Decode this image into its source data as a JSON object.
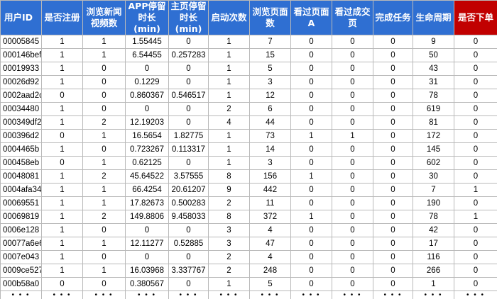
{
  "columns": [
    "用户ID",
    "是否注册",
    "浏览新闻视频数",
    "APP停留时长(min)",
    "主页停留时长(min)",
    "启动次数",
    "浏览页面数",
    "看过页面A",
    "看过成交页",
    "完成任务",
    "生命周期",
    "是否下单"
  ],
  "colors": {
    "header_bg": "#2f6fd2",
    "header_highlight_bg": "#c10000",
    "header_text": "#ffffff"
  },
  "rows": [
    [
      "00005845",
      "1",
      "1",
      "1.55445",
      "0",
      "1",
      "7",
      "0",
      "0",
      "0",
      "9",
      "0"
    ],
    [
      "000146bef",
      "1",
      "1",
      "6.54455",
      "0.257283",
      "1",
      "15",
      "0",
      "0",
      "0",
      "50",
      "0"
    ],
    [
      "00019933",
      "1",
      "0",
      "0",
      "0",
      "1",
      "5",
      "0",
      "0",
      "0",
      "43",
      "0"
    ],
    [
      "00026d92",
      "1",
      "0",
      "0.1229",
      "0",
      "1",
      "3",
      "0",
      "0",
      "0",
      "31",
      "0"
    ],
    [
      "0002aad2c",
      "0",
      "0",
      "0.860367",
      "0.546517",
      "1",
      "12",
      "0",
      "0",
      "0",
      "78",
      "0"
    ],
    [
      "00034480",
      "1",
      "0",
      "0",
      "0",
      "2",
      "6",
      "0",
      "0",
      "0",
      "619",
      "0"
    ],
    [
      "000349df2",
      "1",
      "2",
      "12.19203",
      "0",
      "4",
      "44",
      "0",
      "0",
      "0",
      "81",
      "0"
    ],
    [
      "000396d2",
      "0",
      "1",
      "16.5654",
      "1.82775",
      "1",
      "73",
      "1",
      "1",
      "0",
      "172",
      "0"
    ],
    [
      "0004465b",
      "1",
      "0",
      "0.723267",
      "0.113317",
      "1",
      "14",
      "0",
      "0",
      "0",
      "145",
      "0"
    ],
    [
      "000458eb",
      "0",
      "1",
      "0.62125",
      "0",
      "1",
      "3",
      "0",
      "0",
      "0",
      "602",
      "0"
    ],
    [
      "00048081",
      "1",
      "2",
      "45.64522",
      "3.57555",
      "8",
      "156",
      "1",
      "0",
      "0",
      "30",
      "0"
    ],
    [
      "0004afa34",
      "1",
      "1",
      "66.4254",
      "20.61207",
      "9",
      "442",
      "0",
      "0",
      "0",
      "7",
      "1"
    ],
    [
      "00069551",
      "1",
      "1",
      "17.82673",
      "0.500283",
      "2",
      "11",
      "0",
      "0",
      "0",
      "190",
      "0"
    ],
    [
      "00069819",
      "1",
      "2",
      "149.8806",
      "9.458033",
      "8",
      "372",
      "1",
      "0",
      "0",
      "78",
      "1"
    ],
    [
      "0006e128",
      "1",
      "0",
      "0",
      "0",
      "3",
      "4",
      "0",
      "0",
      "0",
      "42",
      "0"
    ],
    [
      "00077a6e6",
      "1",
      "1",
      "12.11277",
      "0.52885",
      "3",
      "47",
      "0",
      "0",
      "0",
      "17",
      "0"
    ],
    [
      "0007e043",
      "1",
      "0",
      "0",
      "0",
      "2",
      "4",
      "0",
      "0",
      "0",
      "116",
      "0"
    ],
    [
      "0009ce527",
      "1",
      "1",
      "16.03968",
      "3.337767",
      "2",
      "248",
      "0",
      "0",
      "0",
      "266",
      "0"
    ],
    [
      "000b58a0",
      "0",
      "0",
      "0.380567",
      "0",
      "1",
      "5",
      "0",
      "0",
      "0",
      "1",
      "0"
    ]
  ],
  "ellipsis": "• • •"
}
